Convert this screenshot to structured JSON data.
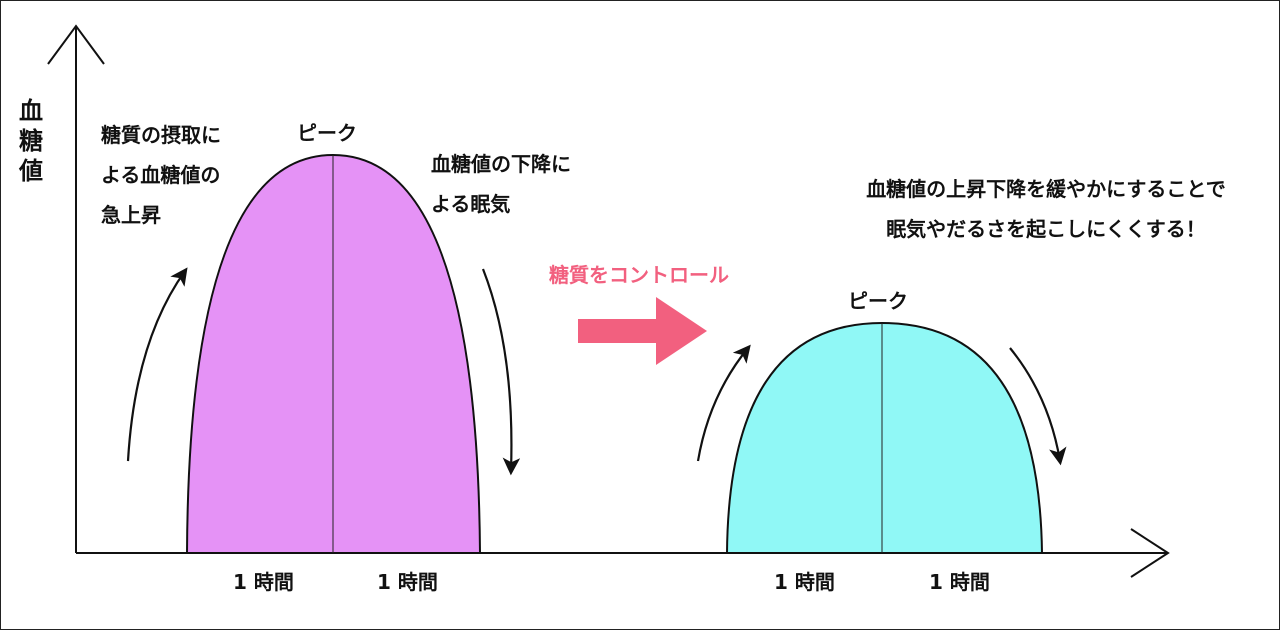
{
  "y_axis_label": "血糖値",
  "before": {
    "rise_text": "糖質の摂取に\nよる血糖値の\n急上昇",
    "peak_label": "ピーク",
    "fall_text": "血糖値の下降に\nよる眠気",
    "time_left": "1 時間",
    "time_right": "1 時間",
    "fill_color": "#e592f6"
  },
  "control_label": "糖質をコントロール",
  "control_color": "#f2607f",
  "after": {
    "message": "血糖値の上昇下降を緩やかにすることで\n眠気やだるさを起こしにくくする！",
    "peak_label": "ピーク",
    "time_left": "1 時間",
    "time_right": "1 時間",
    "fill_color": "#90f8f6"
  },
  "icons": {
    "axis_arrow": "open-chevron-arrow-icon",
    "curve_arrow": "curved-arrow-icon",
    "control_arrow": "block-arrow-right-icon"
  }
}
